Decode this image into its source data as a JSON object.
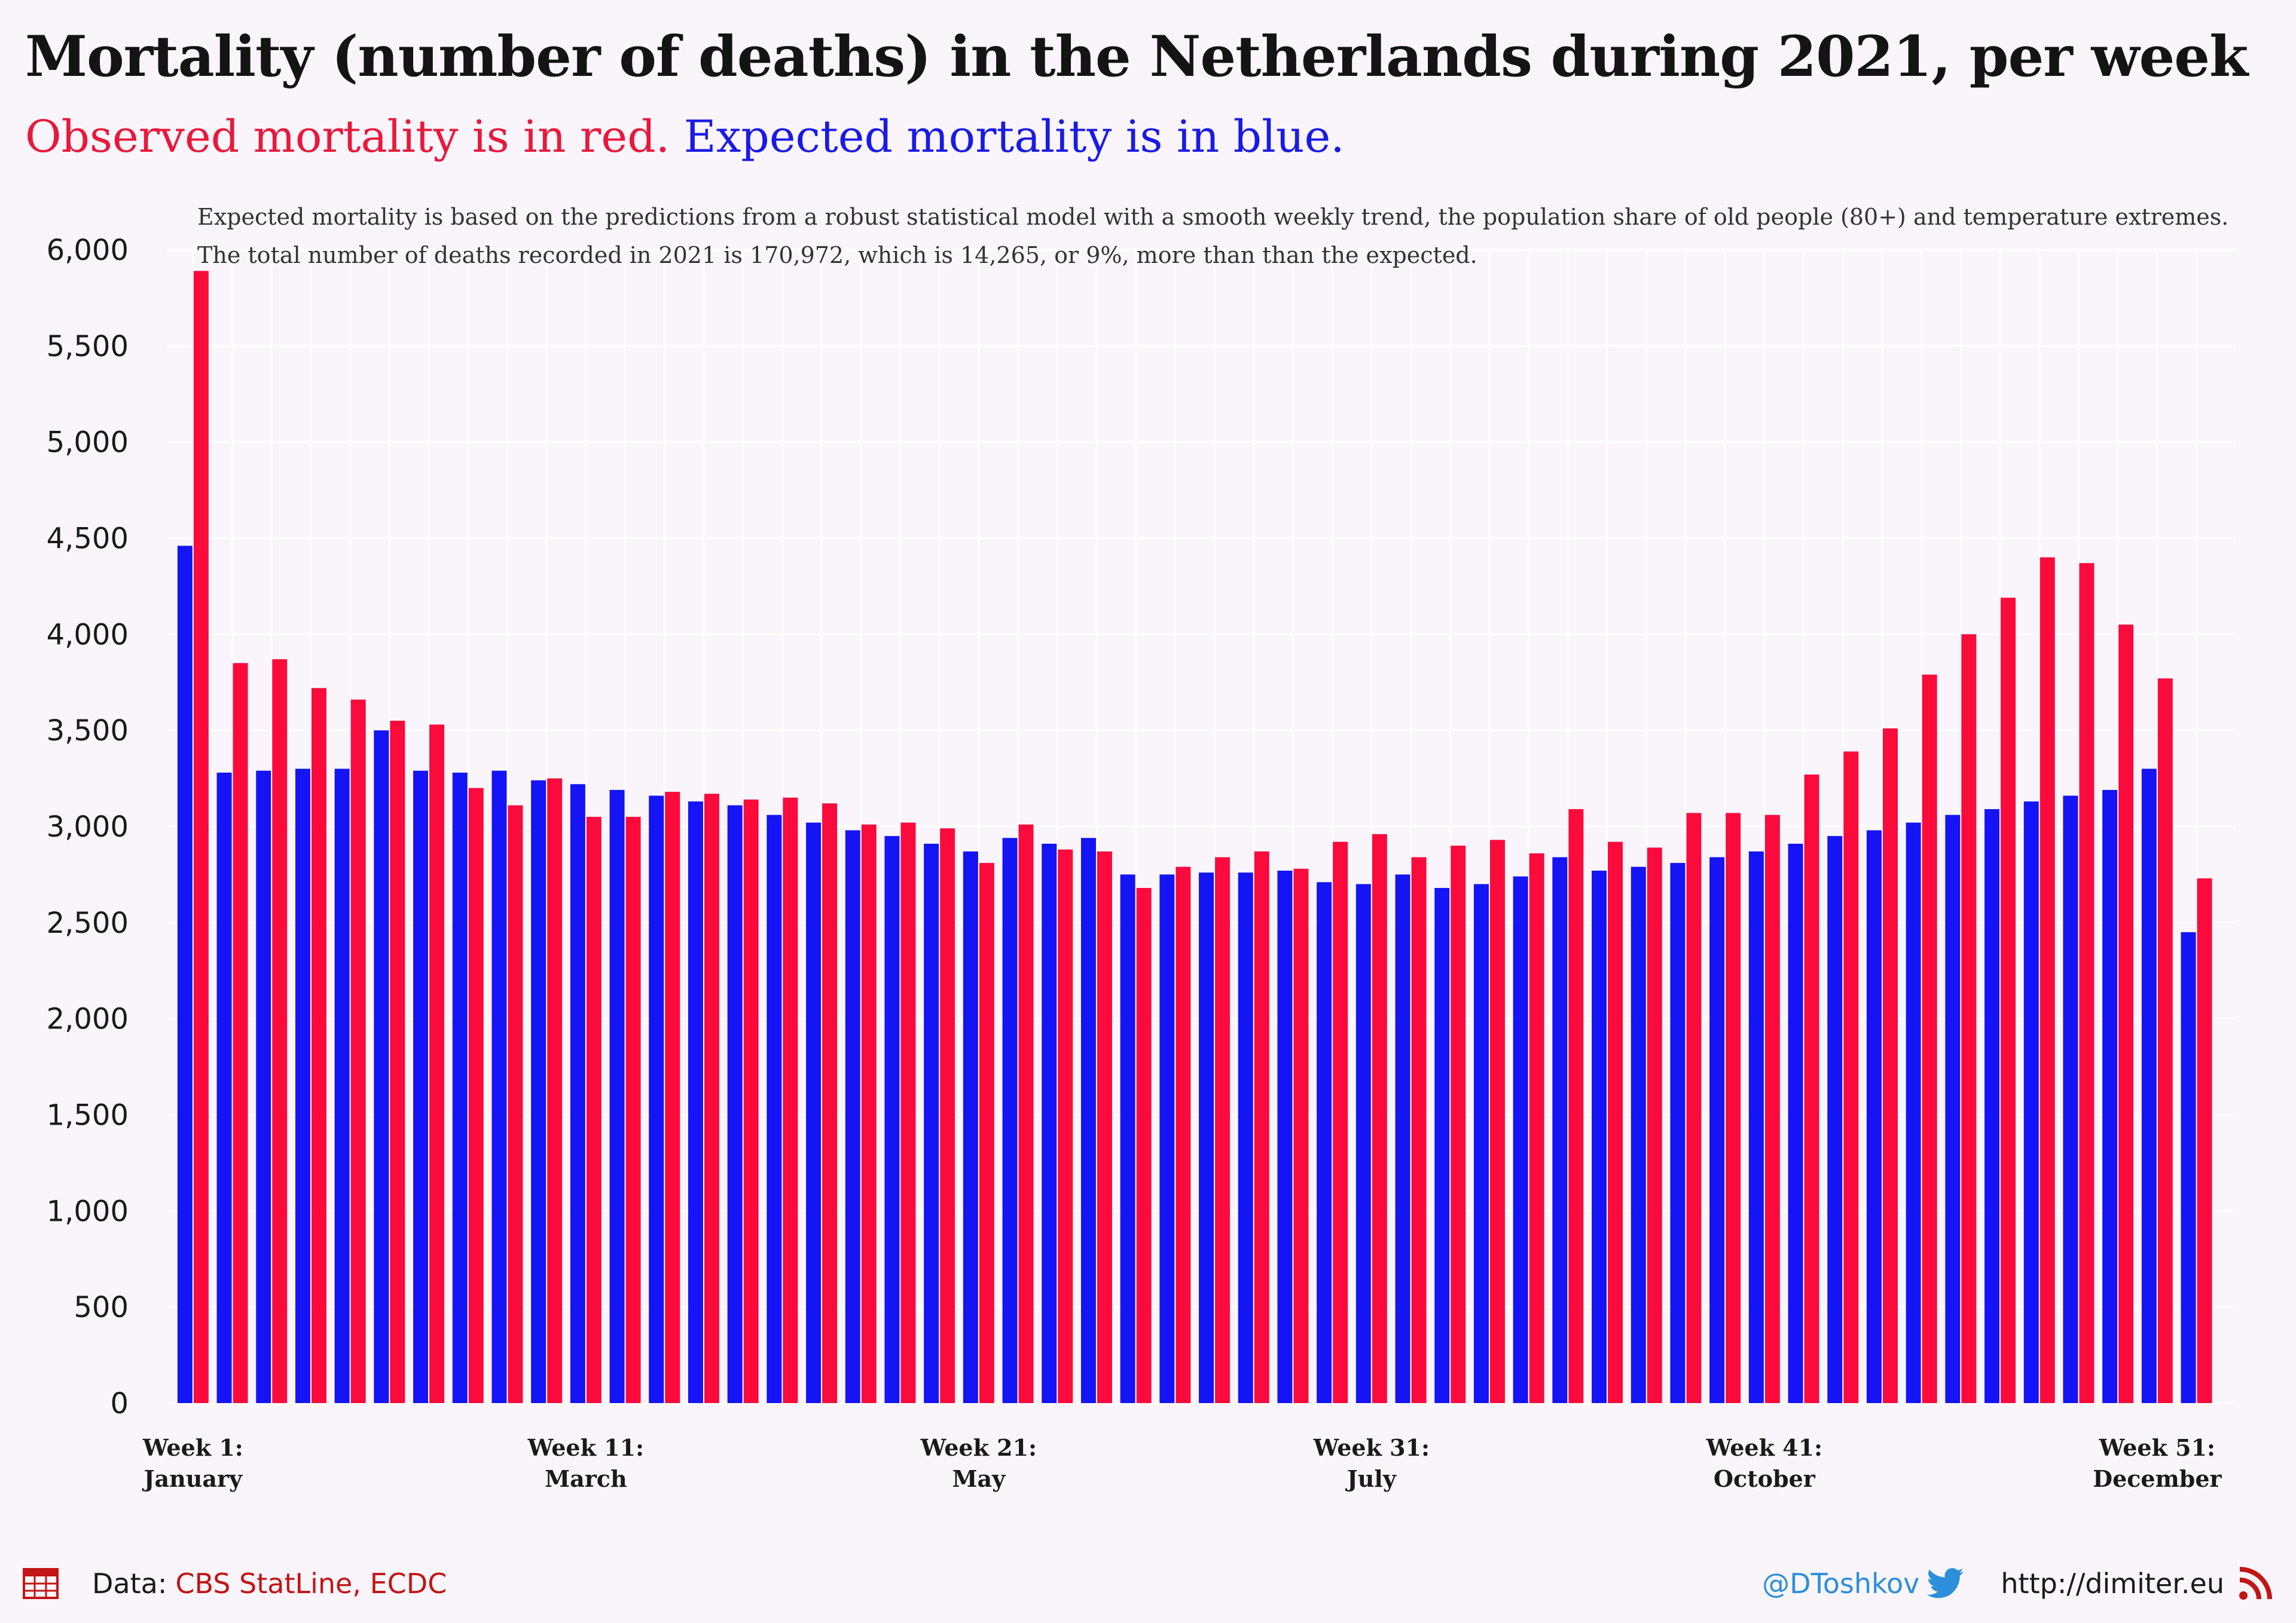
{
  "title": "Mortality (number of deaths) in the Netherlands during 2021, per week",
  "subtitle": {
    "observed": "Observed mortality is in red.",
    "expected": "Expected mortality is in blue."
  },
  "notes": [
    "Expected mortality is based on the predictions from a robust statistical model with a smooth weekly trend, the population share of old people (80+) and temperature extremes.",
    "The total number of deaths recorded in 2021 is 170,972, which is 14,265, or 9%, more than than the expected."
  ],
  "colors": {
    "observed": "#fb0a3c",
    "expected": "#1414f5",
    "background": "#f9f5fb"
  },
  "chart_data": {
    "type": "bar",
    "x": [
      1,
      2,
      3,
      4,
      5,
      6,
      7,
      8,
      9,
      10,
      11,
      12,
      13,
      14,
      15,
      16,
      17,
      18,
      19,
      20,
      21,
      22,
      23,
      24,
      25,
      26,
      27,
      28,
      29,
      30,
      31,
      32,
      33,
      34,
      35,
      36,
      37,
      38,
      39,
      40,
      41,
      42,
      43,
      44,
      45,
      46,
      47,
      48,
      49,
      50,
      51,
      52
    ],
    "series": [
      {
        "key": "expected",
        "values": [
          4460,
          3280,
          3290,
          3300,
          3300,
          3500,
          3290,
          3280,
          3290,
          3240,
          3220,
          3190,
          3160,
          3130,
          3110,
          3060,
          3020,
          2980,
          2950,
          2910,
          2870,
          2940,
          2910,
          2940,
          2750,
          2750,
          2760,
          2760,
          2770,
          2710,
          2700,
          2750,
          2680,
          2700,
          2740,
          2840,
          2770,
          2790,
          2810,
          2840,
          2870,
          2910,
          2950,
          2980,
          3020,
          3060,
          3090,
          3130,
          3160,
          3190,
          3300,
          2450
        ]
      },
      {
        "key": "observed",
        "values": [
          5890,
          3850,
          3870,
          3720,
          3660,
          3550,
          3530,
          3200,
          3110,
          3250,
          3050,
          3050,
          3180,
          3170,
          3140,
          3150,
          3120,
          3010,
          3020,
          2990,
          2810,
          3010,
          2880,
          2870,
          2680,
          2790,
          2840,
          2870,
          2780,
          2920,
          2960,
          2840,
          2900,
          2930,
          2860,
          3090,
          2920,
          2890,
          3070,
          3070,
          3060,
          3270,
          3390,
          3510,
          3790,
          4000,
          4190,
          4400,
          4370,
          4050,
          3770,
          2730
        ]
      }
    ],
    "ylim": [
      0,
      6000
    ],
    "yticks": [
      0,
      500,
      1000,
      1500,
      2000,
      2500,
      3000,
      3500,
      4000,
      4500,
      5000,
      5500,
      6000
    ],
    "ytick_labels": [
      "0",
      "500",
      "1,000",
      "1,500",
      "2,000",
      "2,500",
      "3,000",
      "3,500",
      "4,000",
      "4,500",
      "5,000",
      "5,500",
      "6,000"
    ],
    "xticks": [
      {
        "week": 1,
        "line1": "Week 1:",
        "line2": "January"
      },
      {
        "week": 11,
        "line1": "Week 11:",
        "line2": "March"
      },
      {
        "week": 21,
        "line1": "Week 21:",
        "line2": "May"
      },
      {
        "week": 31,
        "line1": "Week 31:",
        "line2": "July"
      },
      {
        "week": 41,
        "line1": "Week 41:",
        "line2": "October"
      },
      {
        "week": 51,
        "line1": "Week 51:",
        "line2": "December"
      }
    ],
    "grid": true
  },
  "footer": {
    "data_label": "Data:",
    "data_sources": "CBS StatLine, ECDC",
    "twitter": "@DToshkov",
    "website": "http://dimiter.eu",
    "icons": {
      "data": "table-icon",
      "twitter": "twitter-bird-icon",
      "rss": "rss-icon"
    }
  }
}
